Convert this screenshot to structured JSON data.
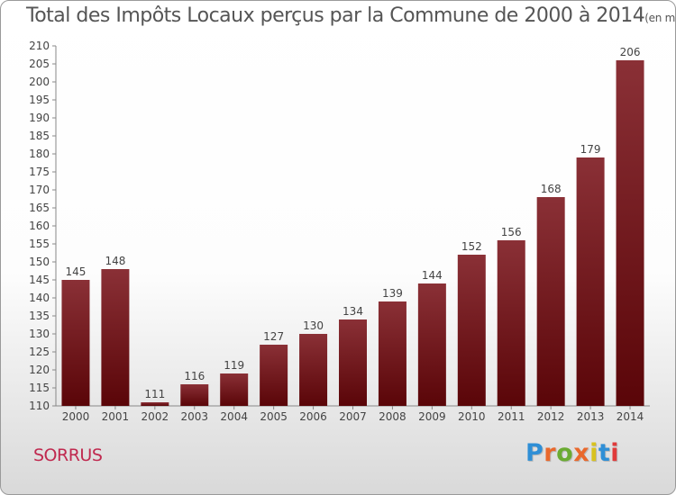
{
  "chart_data": {
    "type": "bar",
    "title": "Total des Impôts Locaux perçus par la Commune de 2000 à 2014",
    "subtitle": "(en milliers d'€)",
    "categories": [
      "2000",
      "2001",
      "2002",
      "2003",
      "2004",
      "2005",
      "2006",
      "2007",
      "2008",
      "2009",
      "2010",
      "2011",
      "2012",
      "2013",
      "2014"
    ],
    "values": [
      145,
      148,
      111,
      116,
      119,
      127,
      130,
      134,
      139,
      144,
      152,
      156,
      168,
      179,
      206
    ],
    "ylim": [
      110,
      210
    ],
    "ytick_step": 5,
    "grid": false,
    "bar_color_top": "#8a3036",
    "bar_color_bottom": "#5a0508"
  },
  "footer": {
    "commune": "SORRUS",
    "brand": "Proxiti",
    "brand_colors": [
      "#2f8fd6",
      "#e9682c",
      "#6aab32",
      "#e9682c",
      "#d8c21e",
      "#2f8fd6",
      "#e03a3a"
    ]
  }
}
